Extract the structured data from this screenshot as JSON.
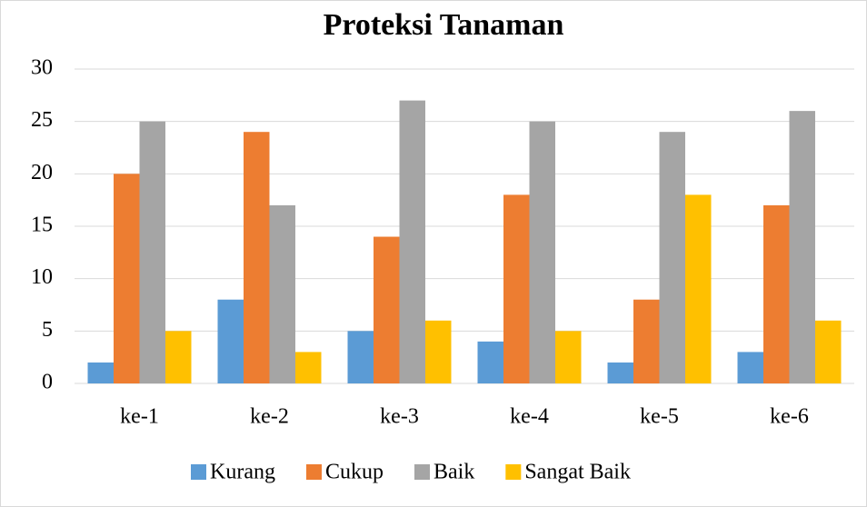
{
  "chart_data": {
    "type": "bar",
    "title": "Proteksi Tanaman",
    "categories": [
      "ke-1",
      "ke-2",
      "ke-3",
      "ke-4",
      "ke-5",
      "ke-6"
    ],
    "series": [
      {
        "name": "Kurang",
        "color": "#5b9bd5",
        "values": [
          2,
          8,
          5,
          4,
          2,
          3
        ]
      },
      {
        "name": "Cukup",
        "color": "#ed7d31",
        "values": [
          20,
          24,
          14,
          18,
          8,
          17
        ]
      },
      {
        "name": "Baik",
        "color": "#a5a5a5",
        "values": [
          25,
          17,
          27,
          25,
          24,
          26
        ]
      },
      {
        "name": "Sangat Baik",
        "color": "#ffc000",
        "values": [
          5,
          3,
          6,
          5,
          18,
          6
        ]
      }
    ],
    "ylim": [
      0,
      30
    ],
    "yticks": [
      0,
      5,
      10,
      15,
      20,
      25,
      30
    ],
    "grid": true,
    "legend": "bottom"
  }
}
